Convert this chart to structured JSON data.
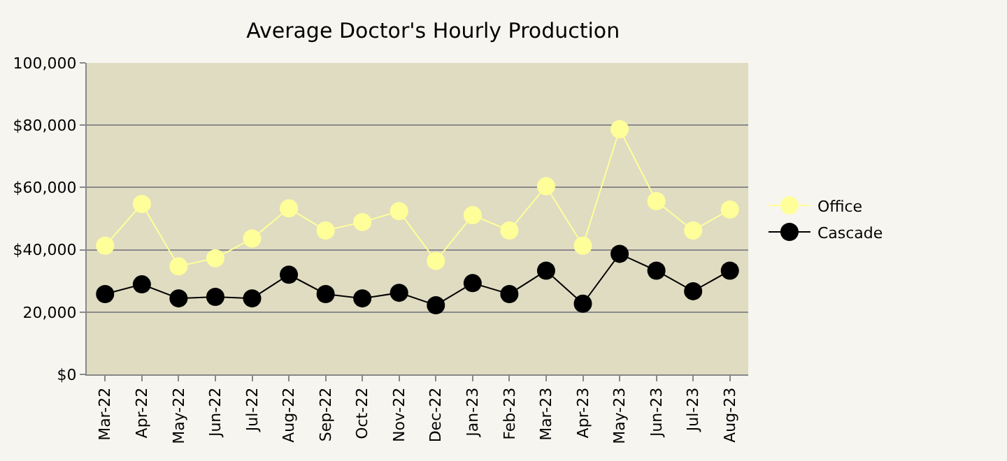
{
  "chart_data": {
    "type": "line",
    "title": "Average Doctor's Hourly Production",
    "categories": [
      "Mar-22",
      "Apr-22",
      "May-22",
      "Jun-22",
      "Jul-22",
      "Aug-22",
      "Sep-22",
      "Oct-22",
      "Nov-22",
      "Dec-22",
      "Jan-23",
      "Feb-23",
      "Mar-23",
      "Apr-23",
      "May-23",
      "Jun-23",
      "Jul-23",
      "Aug-23"
    ],
    "series": [
      {
        "name": "Office",
        "color": "#ffff99",
        "values": [
          41300,
          54700,
          34700,
          37300,
          43600,
          53300,
          46200,
          48900,
          52400,
          36400,
          51100,
          46200,
          60400,
          41300,
          78700,
          55600,
          46200,
          52900
        ]
      },
      {
        "name": "Cascade",
        "color": "#000000",
        "values": [
          25800,
          28900,
          24400,
          24900,
          24400,
          32000,
          25800,
          24400,
          26200,
          22200,
          29300,
          25800,
          33300,
          22700,
          38700,
          33300,
          26700,
          33300
        ]
      }
    ],
    "ylim": [
      0,
      100000
    ],
    "yticks": [
      {
        "value": 0,
        "label": "$0"
      },
      {
        "value": 20000,
        "label": "20,000"
      },
      {
        "value": 40000,
        "label": "$40,000"
      },
      {
        "value": 60000,
        "label": "$60,000"
      },
      {
        "value": 80000,
        "label": "$80,000"
      },
      {
        "value": 100000,
        "label": "100,000"
      }
    ],
    "grid": "y",
    "legend": "right",
    "marker": "circle",
    "line_style": "solid"
  }
}
